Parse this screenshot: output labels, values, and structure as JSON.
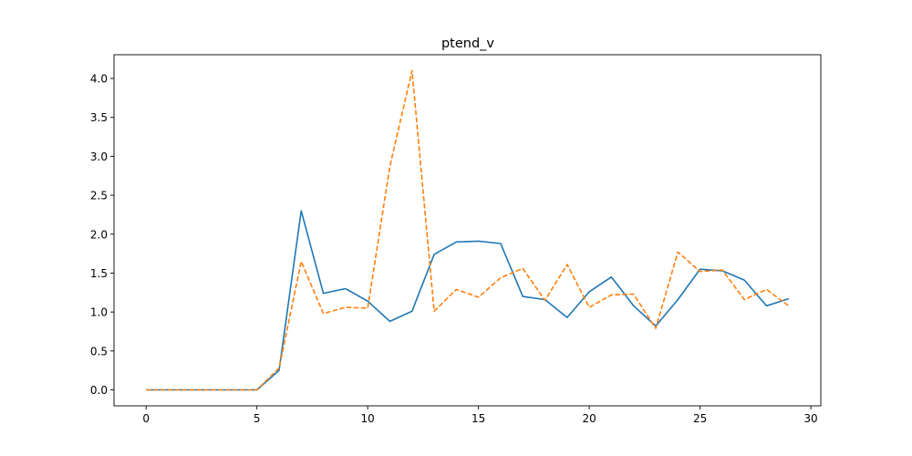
{
  "chart_data": {
    "type": "line",
    "title": "ptend_v",
    "xlabel": "",
    "ylabel": "",
    "xlim": [
      -1.45,
      30.45
    ],
    "ylim": [
      -0.205,
      4.305
    ],
    "xticks": [
      0,
      5,
      10,
      15,
      20,
      25,
      30
    ],
    "xtick_labels": [
      "0",
      "5",
      "10",
      "15",
      "20",
      "25",
      "30"
    ],
    "yticks": [
      0.0,
      0.5,
      1.0,
      1.5,
      2.0,
      2.5,
      3.0,
      3.5,
      4.0
    ],
    "ytick_labels": [
      "0.0",
      "0.5",
      "1.0",
      "1.5",
      "2.0",
      "2.5",
      "3.0",
      "3.5",
      "4.0"
    ],
    "grid": false,
    "legend": "none",
    "x": [
      0,
      1,
      2,
      3,
      4,
      5,
      6,
      7,
      8,
      9,
      10,
      11,
      12,
      13,
      14,
      15,
      16,
      17,
      18,
      19,
      20,
      21,
      22,
      23,
      24,
      25,
      26,
      27,
      28,
      29
    ],
    "series": [
      {
        "color": "#1f77b4",
        "style": "solid",
        "values": [
          0,
          0,
          0,
          0,
          0,
          0,
          0.25,
          2.3,
          1.24,
          1.3,
          1.14,
          0.88,
          1.01,
          1.74,
          1.9,
          1.91,
          1.88,
          1.2,
          1.16,
          0.93,
          1.26,
          1.45,
          1.08,
          0.82,
          1.16,
          1.55,
          1.53,
          1.41,
          1.08,
          1.17
        ]
      },
      {
        "color": "#ff7f0e",
        "style": "dashed",
        "values": [
          0,
          0,
          0,
          0,
          0,
          0,
          0.28,
          1.65,
          0.98,
          1.06,
          1.05,
          2.87,
          4.1,
          1.01,
          1.29,
          1.19,
          1.44,
          1.56,
          1.15,
          1.61,
          1.06,
          1.22,
          1.23,
          0.79,
          1.77,
          1.52,
          1.54,
          1.16,
          1.29,
          1.08
        ]
      }
    ]
  }
}
